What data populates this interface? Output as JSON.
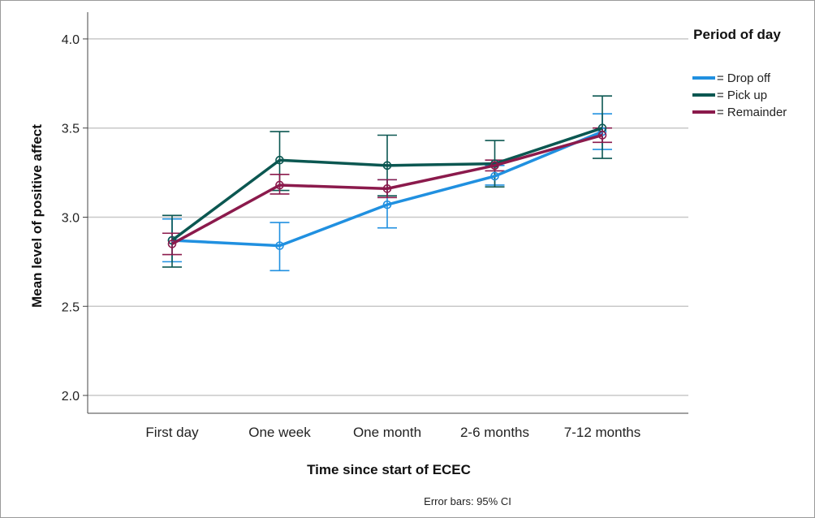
{
  "chart_data": {
    "type": "line",
    "x_label": "Time since start of ECEC",
    "y_label": "Mean level of positive affect",
    "legend_title": "Period of day",
    "note": "Error bars: 95% CI",
    "categories": [
      "First day",
      "One week",
      "One month",
      "2-6 months",
      "7-12 months"
    ],
    "ylim": [
      1.9,
      4.15
    ],
    "yticks": [
      {
        "value": 2,
        "label": "2.0"
      },
      2.5,
      {
        "value": 3,
        "label": "3.0"
      },
      3.5,
      {
        "value": 4,
        "label": "4.0"
      }
    ],
    "grid": true,
    "legend": "right",
    "series": [
      {
        "name": "= Drop off",
        "color": "#2090e0",
        "values": [
          2.87,
          2.84,
          3.07,
          3.23,
          3.48
        ],
        "lower": [
          2.75,
          2.7,
          2.94,
          3.18,
          3.38
        ],
        "upper": [
          2.99,
          2.97,
          3.21,
          3.29,
          3.58
        ]
      },
      {
        "name": "= Pick up",
        "color": "#0b5751",
        "values": [
          2.87,
          3.32,
          3.29,
          3.3,
          3.5
        ],
        "lower": [
          2.72,
          3.15,
          3.12,
          3.17,
          3.33
        ],
        "upper": [
          3.01,
          3.48,
          3.46,
          3.43,
          3.68
        ]
      },
      {
        "name": "= Remainder",
        "color": "#8b1a4c",
        "values": [
          2.85,
          3.18,
          3.16,
          3.29,
          3.46
        ],
        "lower": [
          2.79,
          3.13,
          3.11,
          3.26,
          3.42
        ],
        "upper": [
          2.91,
          3.24,
          3.21,
          3.32,
          3.5
        ]
      }
    ]
  }
}
